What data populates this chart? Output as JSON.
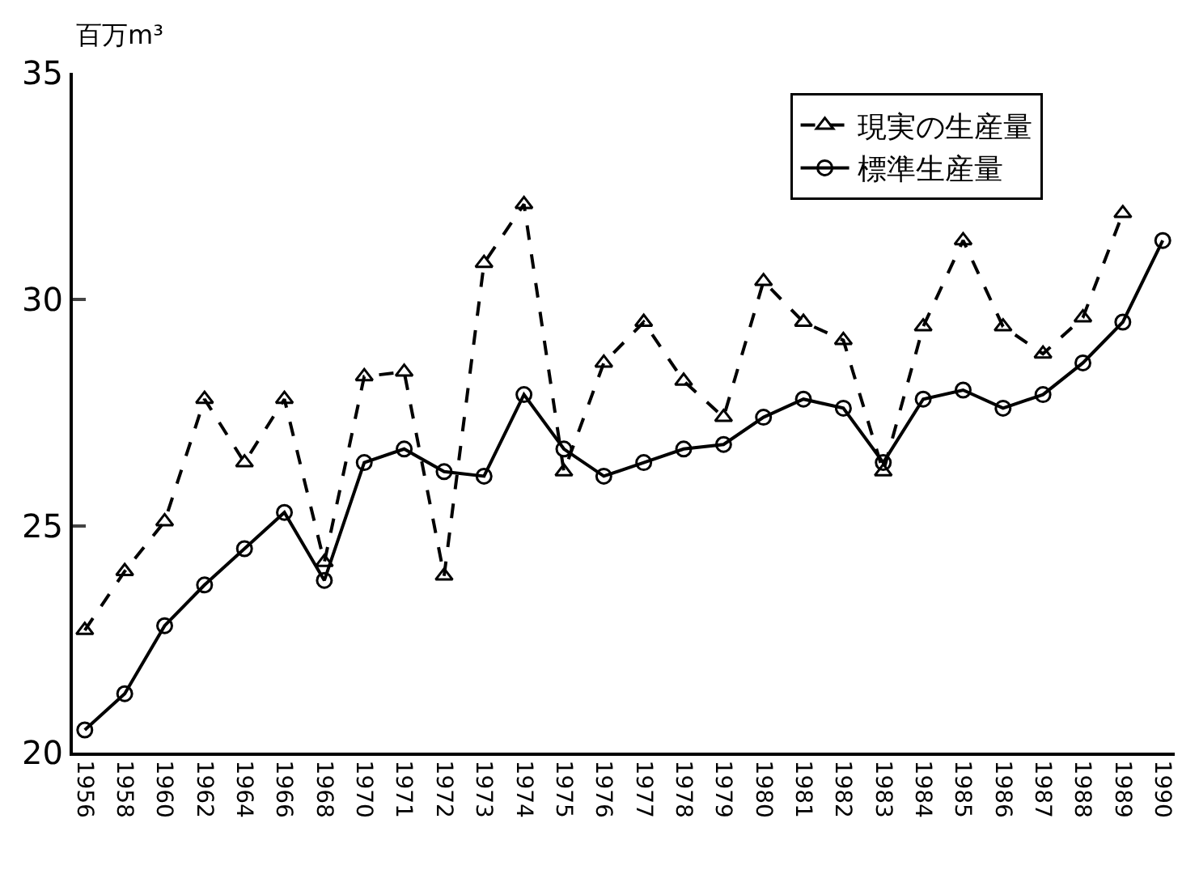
{
  "chart_data": {
    "type": "line",
    "ylabel": "百万m³",
    "categories": [
      "1956",
      "1958",
      "1960",
      "1962",
      "1964",
      "1966",
      "1968",
      "1970",
      "1971",
      "1972",
      "1973",
      "1974",
      "1975",
      "1976",
      "1977",
      "1978",
      "1979",
      "1980",
      "1981",
      "1982",
      "1983",
      "1984",
      "1985",
      "1986",
      "1987",
      "1988",
      "1989",
      "1990"
    ],
    "series": [
      {
        "name": "現実の生産量",
        "color": "#000000",
        "marker": "triangle",
        "line_style": "dashed",
        "values": [
          22.7,
          24.0,
          25.1,
          27.8,
          26.4,
          27.8,
          24.2,
          28.3,
          28.4,
          23.9,
          30.8,
          32.1,
          26.2,
          28.6,
          29.5,
          28.2,
          27.4,
          30.4,
          29.5,
          29.1,
          26.2,
          29.4,
          31.3,
          29.4,
          28.8,
          29.6,
          31.9,
          null
        ]
      },
      {
        "name": "標準生産量",
        "color": "#000000",
        "marker": "circle",
        "line_style": "solid",
        "values": [
          20.5,
          21.3,
          22.8,
          23.7,
          24.5,
          25.3,
          23.8,
          26.4,
          26.7,
          26.2,
          26.1,
          27.9,
          26.7,
          26.1,
          26.4,
          26.7,
          26.8,
          27.4,
          27.8,
          27.6,
          26.4,
          27.8,
          28.0,
          27.6,
          27.9,
          28.6,
          29.5,
          31.3
        ]
      }
    ],
    "ylim": [
      20,
      35
    ],
    "yticks": [
      20,
      25,
      30,
      35
    ],
    "grid": false,
    "legend": "top right"
  }
}
